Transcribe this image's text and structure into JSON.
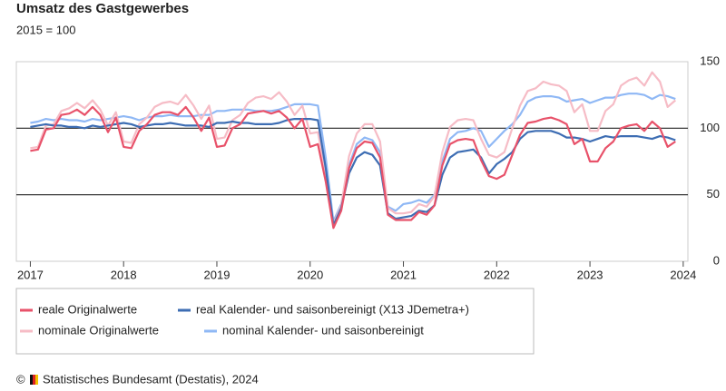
{
  "chart_data": {
    "type": "line",
    "title": "Umsatz des Gastgewerbes",
    "subtitle": "2015 = 100",
    "copyright": "©",
    "source": "Statistisches Bundesamt (Destatis), 2024",
    "x": [
      2017,
      2017.083,
      2017.167,
      2017.25,
      2017.333,
      2017.417,
      2017.5,
      2017.583,
      2017.667,
      2017.75,
      2017.833,
      2017.917,
      2018,
      2018.083,
      2018.167,
      2018.25,
      2018.333,
      2018.417,
      2018.5,
      2018.583,
      2018.667,
      2018.75,
      2018.833,
      2018.917,
      2019,
      2019.083,
      2019.167,
      2019.25,
      2019.333,
      2019.417,
      2019.5,
      2019.583,
      2019.667,
      2019.75,
      2019.833,
      2019.917,
      2020,
      2020.083,
      2020.167,
      2020.25,
      2020.333,
      2020.417,
      2020.5,
      2020.583,
      2020.667,
      2020.75,
      2020.833,
      2020.917,
      2021,
      2021.083,
      2021.167,
      2021.25,
      2021.333,
      2021.417,
      2021.5,
      2021.583,
      2021.667,
      2021.75,
      2021.833,
      2021.917,
      2022,
      2022.083,
      2022.167,
      2022.25,
      2022.333,
      2022.417,
      2022.5,
      2022.583,
      2022.667,
      2022.75,
      2022.833,
      2022.917,
      2023,
      2023.083,
      2023.167,
      2023.25,
      2023.333,
      2023.417,
      2023.5,
      2023.583,
      2023.667,
      2023.75,
      2023.833,
      2023.917
    ],
    "series": [
      {
        "name": "reale Originalwerte",
        "color": "#e8526a",
        "values": [
          83,
          84,
          99,
          100,
          110,
          111,
          114,
          110,
          116,
          110,
          97,
          108,
          86,
          85,
          98,
          103,
          110,
          112,
          112,
          110,
          116,
          108,
          98,
          108,
          86,
          87,
          100,
          103,
          111,
          112,
          113,
          111,
          113,
          108,
          100,
          107,
          86,
          88,
          60,
          25,
          38,
          70,
          85,
          90,
          89,
          78,
          35,
          31,
          31,
          31,
          37,
          35,
          42,
          72,
          88,
          91,
          92,
          91,
          76,
          64,
          62,
          65,
          80,
          95,
          104,
          105,
          107,
          108,
          106,
          103,
          88,
          92,
          75,
          75,
          85,
          90,
          100,
          102,
          103,
          98,
          105,
          100,
          86,
          90
        ]
      },
      {
        "name": "real Kalender- und saisonbereinigt (X13 JDemetra+)",
        "color": "#3d6db3",
        "values": [
          101,
          102,
          103,
          102,
          102,
          101,
          101,
          100,
          102,
          101,
          102,
          103,
          104,
          103,
          101,
          102,
          103,
          103,
          104,
          103,
          102,
          102,
          102,
          101,
          104,
          104,
          105,
          104,
          104,
          103,
          103,
          103,
          104,
          106,
          107,
          107,
          107,
          106,
          70,
          27,
          40,
          66,
          78,
          82,
          80,
          72,
          36,
          32,
          33,
          34,
          38,
          37,
          42,
          65,
          78,
          82,
          83,
          84,
          78,
          66,
          73,
          77,
          82,
          92,
          97,
          98,
          98,
          98,
          96,
          93,
          93,
          92,
          90,
          92,
          94,
          93,
          94,
          94,
          94,
          93,
          92,
          94,
          93,
          91
        ]
      },
      {
        "name": "nominale Originalwerte",
        "color": "#f6bcc6",
        "values": [
          85,
          86,
          102,
          103,
          113,
          115,
          119,
          115,
          121,
          114,
          102,
          112,
          90,
          89,
          103,
          108,
          116,
          119,
          120,
          118,
          125,
          117,
          107,
          117,
          92,
          93,
          106,
          110,
          119,
          123,
          124,
          122,
          127,
          120,
          110,
          117,
          96,
          97,
          66,
          28,
          42,
          79,
          96,
          103,
          103,
          90,
          40,
          36,
          36,
          37,
          43,
          41,
          49,
          82,
          101,
          106,
          107,
          106,
          92,
          80,
          78,
          82,
          100,
          117,
          128,
          130,
          135,
          133,
          132,
          128,
          112,
          118,
          98,
          98,
          113,
          118,
          132,
          136,
          138,
          132,
          142,
          135,
          116,
          121
        ]
      },
      {
        "name": "nominal Kalender- und saisonbereinigt",
        "color": "#8fb8f5",
        "values": [
          104,
          105,
          107,
          106,
          107,
          106,
          106,
          105,
          107,
          106,
          107,
          108,
          109,
          108,
          106,
          108,
          109,
          109,
          110,
          109,
          109,
          109,
          110,
          110,
          113,
          113,
          114,
          114,
          114,
          113,
          113,
          113,
          114,
          116,
          118,
          118,
          118,
          117,
          78,
          30,
          43,
          72,
          88,
          93,
          91,
          82,
          41,
          38,
          43,
          44,
          46,
          44,
          50,
          75,
          92,
          97,
          98,
          100,
          98,
          86,
          92,
          98,
          103,
          110,
          120,
          123,
          124,
          124,
          123,
          120,
          121,
          122,
          119,
          121,
          123,
          123,
          125,
          126,
          126,
          125,
          122,
          125,
          124,
          122
        ]
      }
    ],
    "xlim": [
      2016.85,
      2024.05
    ],
    "xticks": [
      2017,
      2018,
      2019,
      2020,
      2021,
      2022,
      2023,
      2024
    ],
    "ylim": [
      0,
      150
    ],
    "yticks": [
      0,
      50,
      100,
      150
    ],
    "grid": true
  }
}
